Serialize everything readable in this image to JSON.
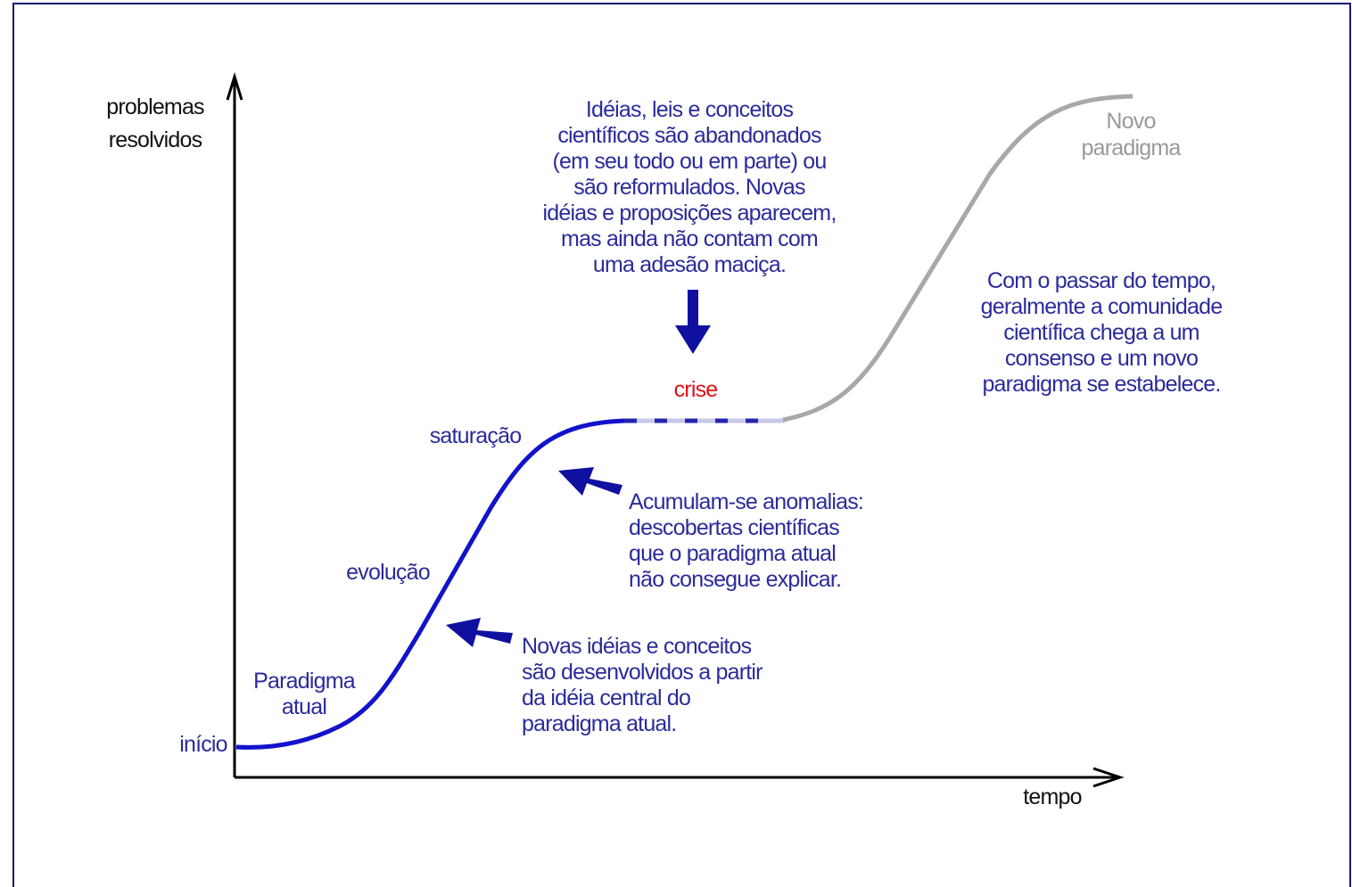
{
  "axes": {
    "y_label": [
      "problemas",
      "resolvidos"
    ],
    "x_label": "tempo"
  },
  "stages": {
    "start": "início",
    "current": [
      "Paradigma",
      "atual"
    ],
    "evolution": "evolução",
    "saturation": "saturação",
    "crisis": "crise",
    "new": [
      "Novo",
      "paradigma"
    ]
  },
  "notes": {
    "crisis": [
      "Idéias, leis e conceitos",
      "científicos são abandonados",
      "(em seu todo ou em parte) ou",
      "são reformulados. Novas",
      "idéias e proposições aparecem,",
      "mas ainda não contam com",
      "uma adesão maciça."
    ],
    "anomalies": [
      "Acumulam-se anomalias:",
      "descobertas científicas",
      "que o paradigma atual",
      "não consegue explicar."
    ],
    "development": [
      "Novas idéias e conceitos",
      "são desenvolvidos a partir",
      "da idéia central do",
      "paradigma atual."
    ],
    "consensus": [
      "Com o passar do tempo,",
      "geralmente a comunidade",
      "científica chega a um",
      "consenso e um novo",
      "paradigma se estabelece."
    ]
  }
}
